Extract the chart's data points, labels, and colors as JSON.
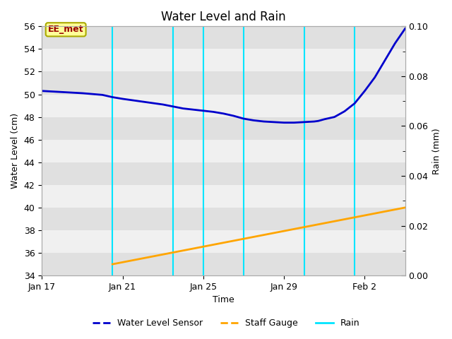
{
  "title": "Water Level and Rain",
  "xlabel": "Time",
  "ylabel_left": "Water Level (cm)",
  "ylabel_right": "Rain (mm)",
  "ylim_left": [
    34,
    56
  ],
  "ylim_right": [
    0.0,
    0.1
  ],
  "yticks_left": [
    34,
    36,
    38,
    40,
    42,
    44,
    46,
    48,
    50,
    52,
    54,
    56
  ],
  "yticks_right": [
    0.0,
    0.02,
    0.04,
    0.06,
    0.08,
    0.1
  ],
  "fig_facecolor": "#ffffff",
  "plot_bg_color": "#e8e8e8",
  "stripe_colors": [
    "#e0e0e0",
    "#f0f0f0"
  ],
  "water_level_color": "#0000cc",
  "staff_gauge_color": "#ffa500",
  "rain_color": "#00e5ff",
  "annotation_text": "EE_met",
  "annotation_facecolor": "#ffff99",
  "annotation_edgecolor": "#aaaa00",
  "annotation_textcolor": "#990000",
  "rain_vlines_days_from_jan17": [
    3.5,
    6.5,
    8.0,
    10.0,
    13.0,
    15.5
  ],
  "water_level_points": [
    [
      0,
      50.3
    ],
    [
      1,
      50.2
    ],
    [
      2,
      50.1
    ],
    [
      3,
      49.95
    ],
    [
      3.5,
      49.75
    ],
    [
      4,
      49.6
    ],
    [
      5,
      49.35
    ],
    [
      6,
      49.1
    ],
    [
      7,
      48.75
    ],
    [
      8,
      48.55
    ],
    [
      8.5,
      48.45
    ],
    [
      9,
      48.3
    ],
    [
      9.5,
      48.1
    ],
    [
      10,
      47.85
    ],
    [
      10.5,
      47.7
    ],
    [
      11,
      47.6
    ],
    [
      11.5,
      47.55
    ],
    [
      12,
      47.5
    ],
    [
      12.5,
      47.5
    ],
    [
      13,
      47.55
    ],
    [
      13.5,
      47.6
    ],
    [
      13.7,
      47.65
    ],
    [
      14,
      47.8
    ],
    [
      14.5,
      48.0
    ],
    [
      15,
      48.5
    ],
    [
      15.5,
      49.2
    ],
    [
      16,
      50.3
    ],
    [
      16.5,
      51.5
    ],
    [
      17,
      53.0
    ],
    [
      17.5,
      54.5
    ],
    [
      18,
      55.8
    ]
  ],
  "staff_gauge_points": [
    [
      3.5,
      35.0
    ],
    [
      18,
      40.0
    ]
  ],
  "x_tick_labels": [
    "Jan 17",
    "Jan 21",
    "Jan 25",
    "Jan 29",
    "Feb 2"
  ],
  "x_tick_days": [
    0,
    4,
    8,
    12,
    16
  ],
  "xlim": [
    0,
    18
  ],
  "legend_labels": [
    "Water Level Sensor",
    "Staff Gauge",
    "Rain"
  ],
  "legend_colors": [
    "#0000cc",
    "#ffa500",
    "#00e5ff"
  ],
  "title_fontsize": 12,
  "axis_label_fontsize": 9,
  "tick_fontsize": 9
}
